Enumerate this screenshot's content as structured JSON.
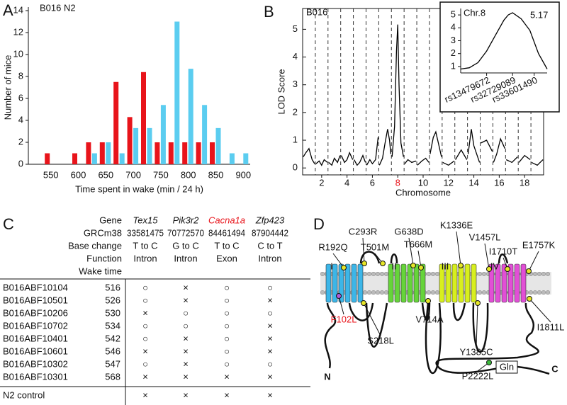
{
  "panels": [
    "A",
    "B",
    "C",
    "D"
  ],
  "chart_data": [
    {
      "type": "bar",
      "annotation": "B016 N2",
      "x_label": "Time spent in wake (min / 24 h)",
      "y_label": "Number of mice",
      "categories": [
        550,
        null,
        600,
        null,
        650,
        null,
        700,
        null,
        750,
        null,
        800,
        null,
        850,
        null,
        900
      ],
      "series": [
        {
          "color": "#e8141b",
          "values": [
            1,
            null,
            1,
            2,
            2,
            7.5,
            4.3,
            8.4,
            2,
            2,
            2,
            2,
            2,
            null,
            null
          ]
        },
        {
          "color": "#5bcdf0",
          "values": [
            null,
            null,
            null,
            1,
            2,
            1,
            3.3,
            3.3,
            5.4,
            13,
            8.7,
            5.4,
            3.3,
            1,
            1
          ]
        }
      ],
      "ylim": [
        0,
        14
      ],
      "yticks": [
        0,
        2,
        4,
        6,
        8,
        10,
        12,
        14
      ]
    },
    {
      "type": "line",
      "annotation": "B016",
      "x_label": "Chromosome",
      "y_label": "LOD Score",
      "color": "#000000",
      "x": [
        0.05,
        0.25,
        0.5,
        0.75,
        0.95,
        null,
        1.05,
        1.3,
        1.5,
        1.7,
        1.95,
        null,
        2.05,
        2.3,
        2.5,
        2.75,
        2.95,
        null,
        3.05,
        3.3,
        3.5,
        3.7,
        3.95,
        null,
        4.05,
        4.3,
        4.5,
        4.75,
        4.95,
        null,
        5.05,
        5.3,
        5.5,
        5.75,
        5.95,
        null,
        6.05,
        6.3,
        6.5,
        6.7,
        6.85,
        6.95,
        null,
        7.05,
        7.25,
        7.4,
        7.5,
        7.6,
        7.75,
        7.95,
        null,
        8.05,
        8.3,
        8.6,
        8.95,
        null,
        9.05,
        9.4,
        9.7,
        9.95,
        null,
        10.05,
        10.3,
        10.5,
        10.7,
        10.95,
        null,
        11.05,
        11.5,
        11.95,
        null,
        12.05,
        12.5,
        12.95,
        null,
        13.05,
        13.3,
        13.5,
        13.95,
        null,
        14.05,
        14.5,
        14.95,
        null,
        15.05,
        15.3,
        15.6,
        15.95,
        null,
        16.05,
        16.5,
        16.95,
        null,
        17.05,
        17.5,
        17.95,
        null,
        18.05,
        18.5,
        18.95
      ],
      "values": [
        0.4,
        0.55,
        0.7,
        0.3,
        0.15,
        null,
        0.15,
        0.25,
        0.1,
        0.3,
        0.2,
        null,
        0.2,
        0.1,
        0.35,
        0.2,
        0.45,
        null,
        0.45,
        0.2,
        0.3,
        0.55,
        0.3,
        null,
        0.3,
        0.1,
        0.2,
        0.45,
        0.2,
        null,
        0.1,
        0.3,
        0.15,
        0.3,
        1.1,
        null,
        0.1,
        0.35,
        0.9,
        1.4,
        1.0,
        0.5,
        null,
        0.4,
        1.5,
        4.2,
        5.17,
        3.0,
        0.9,
        0.4,
        null,
        0.15,
        0.3,
        0.2,
        0.25,
        null,
        0.1,
        0.25,
        0.35,
        0.2,
        null,
        0.5,
        1.1,
        1.3,
        0.9,
        0.4,
        null,
        0.2,
        0.1,
        0.25,
        null,
        0.3,
        0.65,
        0.3,
        null,
        0.5,
        1.4,
        0.8,
        0.2,
        null,
        0.9,
        1.0,
        0.6,
        null,
        0.2,
        0.5,
        1.05,
        0.7,
        null,
        0.3,
        0.2,
        0.4,
        null,
        0.2,
        0.45,
        0.3,
        null,
        0.2,
        0.1,
        0.3
      ],
      "chromosome_boundaries": [
        1,
        2,
        3,
        4,
        5,
        6,
        7,
        8,
        9,
        10,
        11,
        12,
        13,
        14,
        15,
        16,
        17,
        18
      ],
      "xlim": [
        0,
        19
      ],
      "xticks": [
        {
          "value": 1.5,
          "label": "2"
        },
        {
          "value": 3.5,
          "label": "4"
        },
        {
          "value": 5.5,
          "label": "6"
        },
        {
          "value": 7.5,
          "label": "8"
        },
        {
          "value": 9.5,
          "label": "10"
        },
        {
          "value": 11.5,
          "label": "12"
        },
        {
          "value": 13.5,
          "label": "14"
        },
        {
          "value": 15.5,
          "label": "16"
        },
        {
          "value": 17.5,
          "label": "18"
        }
      ],
      "highlight_xtick_index": 3,
      "highlight_color": "#e8141b",
      "ylim": [
        -0.25,
        5.75
      ],
      "yticks": [
        0,
        1,
        2,
        3,
        4,
        5
      ]
    },
    {
      "type": "line",
      "title": "Chr.8",
      "annotation": "5.17",
      "color": "#000000",
      "x": [
        0,
        0.1,
        0.2,
        0.3,
        0.4,
        0.5,
        0.55,
        0.6,
        0.7,
        0.8,
        0.9,
        1.0
      ],
      "values": [
        0.8,
        0.9,
        1.3,
        2.2,
        3.4,
        4.6,
        5.0,
        5.17,
        4.7,
        3.8,
        2.0,
        0.8
      ],
      "xlim": [
        0,
        1
      ],
      "xticks": [
        {
          "value": 0.3,
          "label": "rs13479672"
        },
        {
          "value": 0.6,
          "label": "rs32729089"
        },
        {
          "value": 0.85,
          "label": "rs33601490"
        }
      ],
      "ylim": [
        0.5,
        5.5
      ],
      "yticks": [
        1,
        2,
        3,
        4,
        5
      ]
    }
  ],
  "table": {
    "header_labels": [
      "Gene",
      "GRCm38",
      "Base change",
      "Function",
      "Wake time"
    ],
    "columns": [
      {
        "gene": "Tex15",
        "position": 33581475,
        "base_change": "T to C",
        "function": "Intron"
      },
      {
        "gene": "Pik3r2",
        "position": 70772570,
        "base_change": "G to C",
        "function": "Intron"
      },
      {
        "gene": "Cacna1a",
        "position": 84461494,
        "base_change": "T to C",
        "function": "Exon",
        "color": "#e8141b"
      },
      {
        "gene": "Zfp423",
        "position": 87904442,
        "base_change": "C to T",
        "function": "Intron"
      }
    ],
    "rows": [
      {
        "id": "B016ABF10104",
        "wake_time": 516,
        "marks": [
          "○",
          "×",
          "○",
          "○"
        ]
      },
      {
        "id": "B016ABF10501",
        "wake_time": 526,
        "marks": [
          "○",
          "×",
          "○",
          "×"
        ]
      },
      {
        "id": "B016ABF10206",
        "wake_time": 530,
        "marks": [
          "×",
          "○",
          "○",
          "○"
        ]
      },
      {
        "id": "B016ABF10702",
        "wake_time": 534,
        "marks": [
          "○",
          "○",
          "○",
          "×"
        ]
      },
      {
        "id": "B016ABF10401",
        "wake_time": 542,
        "marks": [
          "○",
          "×",
          "○",
          "×"
        ]
      },
      {
        "id": "B016ABF10601",
        "wake_time": 546,
        "marks": [
          "×",
          "×",
          "○",
          "×"
        ]
      },
      {
        "id": "B016ABF10302",
        "wake_time": 547,
        "marks": [
          "○",
          "×",
          "○",
          "○"
        ]
      },
      {
        "id": "B016ABF10301",
        "wake_time": 568,
        "marks": [
          "×",
          "×",
          "×",
          "×"
        ]
      }
    ],
    "control": {
      "id": "N2 control",
      "marks": [
        "×",
        "×",
        "×",
        "×"
      ]
    }
  },
  "diagram": {
    "domains": [
      {
        "label": "I",
        "color": "#3cb6e8"
      },
      {
        "label": "II",
        "color": "#66d43a"
      },
      {
        "label": "III",
        "color": "#d8ef1e"
      },
      {
        "label": "IV",
        "color": "#e24fd6"
      }
    ],
    "mutations": [
      {
        "label": "R192Q"
      },
      {
        "label": "C293R"
      },
      {
        "label": "T501M"
      },
      {
        "label": "G638D"
      },
      {
        "label": "T666M"
      },
      {
        "label": "K1336E"
      },
      {
        "label": "V1457L"
      },
      {
        "label": "I1710T"
      },
      {
        "label": "E1757K"
      },
      {
        "label": "F102L",
        "color": "#e8141b"
      },
      {
        "label": "S218L"
      },
      {
        "label": "V714A"
      },
      {
        "label": "Y1385C"
      },
      {
        "label": "I1811L"
      },
      {
        "label": "P2222L"
      }
    ],
    "n_terminus": "N",
    "c_terminus": "C",
    "repeat_label": "Gln"
  }
}
